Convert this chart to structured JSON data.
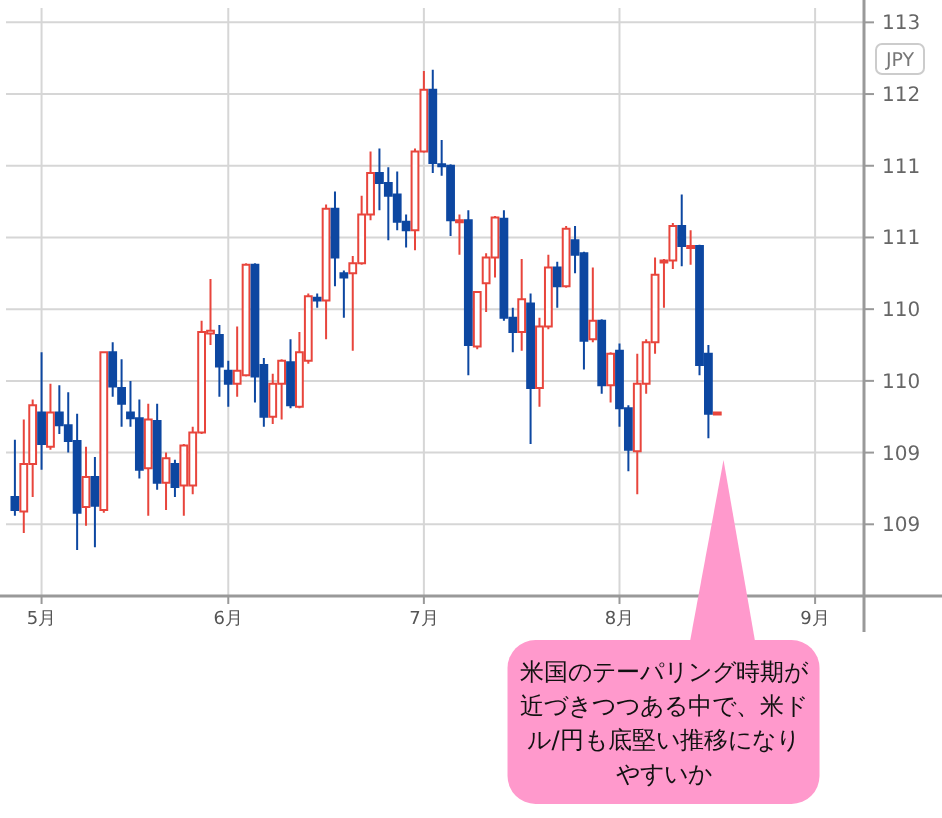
{
  "chart_data": {
    "type": "candlestick",
    "categories": [
      null,
      null,
      null,
      "5月",
      null,
      null,
      null,
      null,
      null,
      null,
      null,
      null,
      null,
      null,
      null,
      null,
      null,
      null,
      null,
      null,
      null,
      null,
      null,
      null,
      "6月",
      null,
      null,
      null,
      null,
      null,
      null,
      null,
      null,
      null,
      null,
      null,
      null,
      null,
      null,
      null,
      null,
      null,
      null,
      null,
      null,
      null,
      "7月",
      null,
      null,
      null,
      null,
      null,
      null,
      null,
      null,
      null,
      null,
      null,
      null,
      null,
      null,
      null,
      null,
      null,
      null,
      null,
      null,
      null,
      "8月",
      null,
      null,
      null,
      null,
      null,
      null,
      null,
      null,
      null,
      null,
      null,
      null,
      null,
      null,
      null,
      null,
      null,
      null,
      null,
      null,
      null,
      "9月",
      null,
      null,
      null,
      null,
      null
    ],
    "ohlc": [
      [
        109.19,
        109.59,
        109.06,
        109.1
      ],
      [
        109.09,
        109.73,
        108.94,
        109.42
      ],
      [
        109.42,
        109.87,
        109.19,
        109.83
      ],
      [
        109.78,
        110.2,
        109.38,
        109.56
      ],
      [
        109.54,
        109.98,
        109.52,
        109.78
      ],
      [
        109.78,
        109.97,
        109.63,
        109.69
      ],
      [
        109.69,
        109.92,
        109.5,
        109.58
      ],
      [
        109.58,
        109.77,
        108.82,
        109.08
      ],
      [
        109.12,
        109.54,
        108.99,
        109.33
      ],
      [
        109.33,
        109.47,
        108.84,
        109.13
      ],
      [
        109.1,
        110.2,
        109.08,
        110.2
      ],
      [
        110.2,
        110.27,
        109.89,
        109.96
      ],
      [
        109.95,
        110.15,
        109.68,
        109.84
      ],
      [
        109.78,
        110.0,
        109.68,
        109.74
      ],
      [
        109.74,
        109.87,
        109.32,
        109.38
      ],
      [
        109.39,
        109.84,
        109.06,
        109.73
      ],
      [
        109.72,
        109.84,
        109.24,
        109.29
      ],
      [
        109.29,
        109.5,
        109.1,
        109.46
      ],
      [
        109.42,
        109.45,
        109.19,
        109.26
      ],
      [
        109.27,
        109.56,
        109.06,
        109.55
      ],
      [
        109.27,
        109.68,
        109.21,
        109.64
      ],
      [
        109.64,
        110.42,
        109.63,
        110.34
      ],
      [
        110.33,
        110.71,
        110.25,
        110.35
      ],
      [
        110.32,
        110.39,
        109.89,
        110.1
      ],
      [
        110.07,
        110.14,
        109.82,
        109.98
      ],
      [
        109.98,
        110.38,
        109.89,
        110.07
      ],
      [
        110.04,
        110.82,
        110.03,
        110.81
      ],
      [
        110.81,
        110.82,
        109.85,
        110.03
      ],
      [
        110.11,
        110.16,
        109.68,
        109.75
      ],
      [
        109.75,
        110.05,
        109.7,
        109.98
      ],
      [
        109.98,
        110.15,
        109.73,
        110.14
      ],
      [
        110.13,
        110.29,
        109.81,
        109.83
      ],
      [
        109.82,
        110.34,
        109.81,
        110.2
      ],
      [
        110.14,
        110.61,
        110.12,
        110.59
      ],
      [
        110.58,
        110.61,
        110.51,
        110.56
      ],
      [
        110.56,
        111.23,
        110.29,
        111.2
      ],
      [
        111.2,
        111.32,
        110.66,
        110.86
      ],
      [
        110.75,
        110.77,
        110.44,
        110.72
      ],
      [
        110.75,
        110.87,
        110.21,
        110.82
      ],
      [
        110.82,
        111.29,
        110.81,
        111.16
      ],
      [
        111.16,
        111.6,
        111.12,
        111.45
      ],
      [
        111.45,
        111.62,
        111.19,
        111.38
      ],
      [
        111.38,
        111.49,
        110.98,
        111.29
      ],
      [
        111.3,
        111.46,
        111.05,
        111.11
      ],
      [
        111.11,
        111.16,
        110.93,
        111.05
      ],
      [
        111.05,
        111.62,
        110.91,
        111.6
      ],
      [
        111.6,
        112.16,
        111.59,
        112.03
      ],
      [
        112.03,
        112.17,
        111.45,
        111.52
      ],
      [
        111.51,
        111.68,
        111.43,
        111.5
      ],
      [
        111.5,
        111.51,
        111.01,
        111.12
      ],
      [
        111.11,
        111.16,
        110.88,
        111.12
      ],
      [
        111.12,
        111.19,
        110.04,
        110.25
      ],
      [
        110.24,
        110.62,
        110.22,
        110.62
      ],
      [
        110.68,
        110.89,
        110.48,
        110.86
      ],
      [
        110.86,
        111.15,
        110.72,
        111.14
      ],
      [
        111.13,
        111.19,
        110.42,
        110.44
      ],
      [
        110.44,
        110.51,
        110.2,
        110.34
      ],
      [
        110.34,
        110.85,
        110.21,
        110.57
      ],
      [
        110.54,
        110.61,
        109.56,
        109.95
      ],
      [
        109.95,
        110.44,
        109.82,
        110.38
      ],
      [
        110.38,
        110.88,
        110.36,
        110.79
      ],
      [
        110.79,
        110.83,
        110.51,
        110.66
      ],
      [
        110.66,
        111.08,
        110.65,
        111.06
      ],
      [
        110.98,
        111.08,
        110.75,
        110.88
      ],
      [
        110.89,
        110.9,
        110.08,
        110.28
      ],
      [
        110.29,
        110.79,
        110.27,
        110.42
      ],
      [
        110.42,
        110.43,
        109.91,
        109.97
      ],
      [
        109.97,
        110.2,
        109.85,
        110.19
      ],
      [
        110.21,
        110.26,
        109.68,
        109.81
      ],
      [
        109.81,
        109.83,
        109.37,
        109.52
      ],
      [
        109.51,
        110.19,
        109.21,
        109.98
      ],
      [
        109.98,
        110.29,
        109.91,
        110.27
      ],
      [
        110.27,
        110.86,
        110.19,
        110.74
      ],
      [
        110.83,
        110.85,
        110.51,
        110.84
      ],
      [
        110.84,
        111.1,
        110.78,
        111.08
      ],
      [
        111.08,
        111.3,
        110.8,
        110.94
      ],
      [
        110.93,
        111.05,
        110.81,
        110.94
      ],
      [
        110.94,
        110.95,
        110.04,
        110.11
      ],
      [
        110.19,
        110.25,
        109.6,
        109.77
      ],
      [
        109.77,
        109.78,
        109.77,
        109.78
      ],
      null,
      null,
      null,
      null,
      null,
      null,
      null,
      null,
      null,
      null,
      null,
      null,
      null,
      null,
      null,
      null
    ],
    "ylim": [
      108.5,
      112.6
    ],
    "yticks": [
      {
        "value": 112.5,
        "label": "113"
      },
      {
        "value": 112,
        "label": "112"
      },
      {
        "value": 111.5,
        "label": "111"
      },
      {
        "value": 111,
        "label": "111"
      },
      {
        "value": 110.5,
        "label": "110"
      },
      {
        "value": 110,
        "label": "110"
      },
      {
        "value": 109.5,
        "label": "109"
      },
      {
        "value": 109,
        "label": "109"
      }
    ],
    "grid": true,
    "annotations": [
      "JPY",
      "米国のテーパリング時期が近づきつつある中で、米ドル/円も底堅い推移になりやすいか"
    ]
  }
}
